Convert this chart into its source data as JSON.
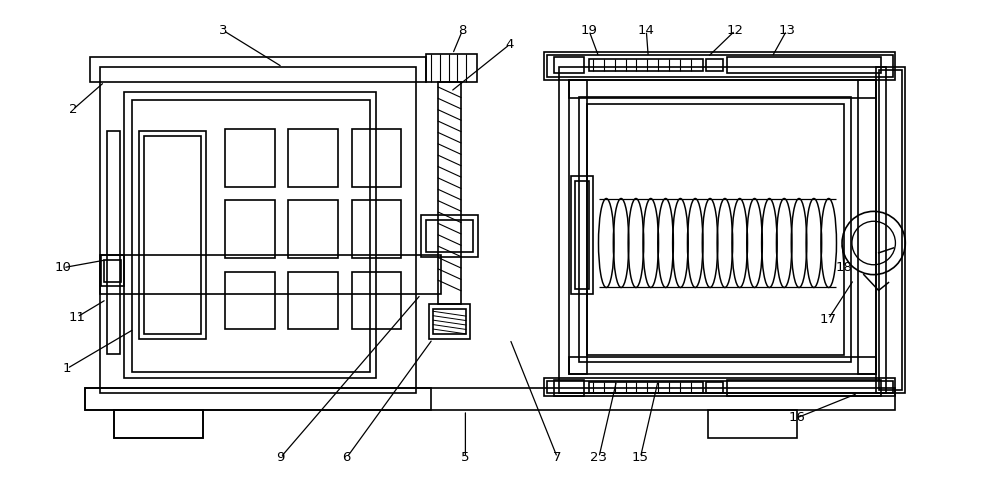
{
  "bg_color": "#ffffff",
  "line_color": "#000000",
  "line_width": 1.2,
  "fig_width": 10.0,
  "fig_height": 4.86
}
